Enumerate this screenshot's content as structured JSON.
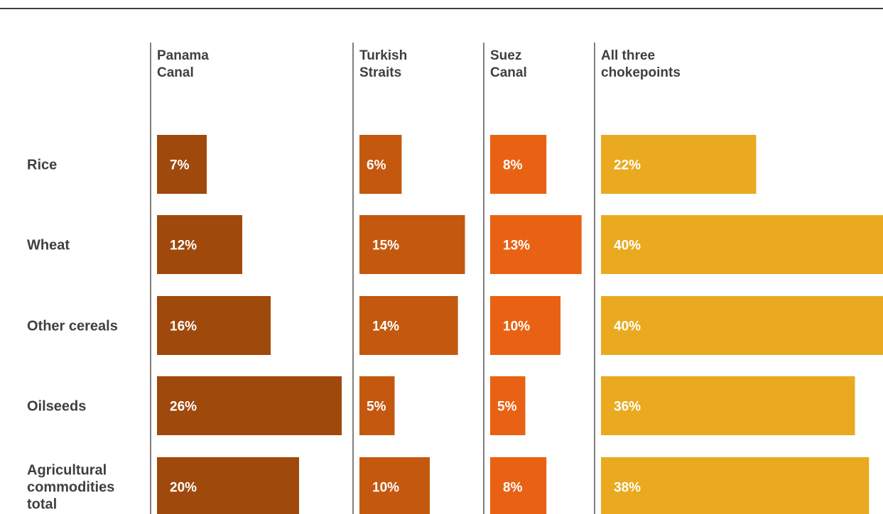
{
  "chart_data": {
    "type": "bar",
    "categories": [
      [
        "Rice"
      ],
      [
        "Wheat"
      ],
      [
        "Other cereals"
      ],
      [
        "Oilseeds"
      ],
      [
        "Agricultural",
        "commodities",
        "total"
      ]
    ],
    "series": [
      {
        "name": [
          "Panama",
          "Canal"
        ],
        "color": "#a0490c",
        "values": [
          7,
          12,
          16,
          26,
          20
        ]
      },
      {
        "name": [
          "Turkish",
          "Straits"
        ],
        "color": "#c4580f",
        "values": [
          6,
          15,
          14,
          5,
          10
        ]
      },
      {
        "name": [
          "Suez",
          "Canal"
        ],
        "color": "#e96213",
        "values": [
          8,
          13,
          10,
          5,
          8
        ]
      },
      {
        "name": [
          "All three",
          "chokepoints"
        ],
        "color": "#e9aa1f",
        "values": [
          22,
          40,
          40,
          36,
          38
        ]
      }
    ],
    "value_suffix": "%"
  }
}
